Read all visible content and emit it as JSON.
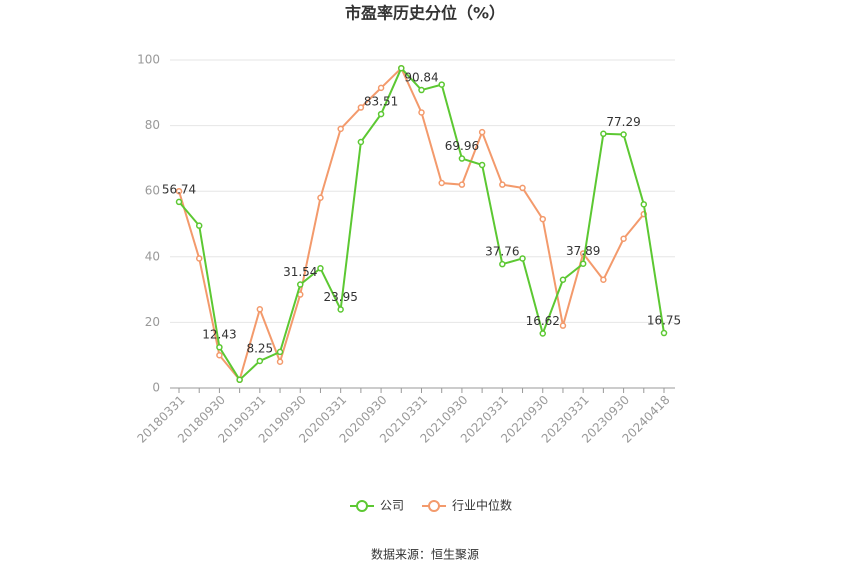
{
  "chart_data": {
    "type": "line",
    "title": "市盈率历史分位（%）",
    "source": "数据来源：恒生聚源",
    "categories": [
      "20180331",
      null,
      "20180930",
      null,
      "20190331",
      null,
      "20190930",
      null,
      "20200331",
      null,
      "20200930",
      null,
      "20210331",
      null,
      "20210930",
      null,
      "20220331",
      null,
      "20220930",
      null,
      "20230331",
      null,
      "20230930",
      null,
      "20240418"
    ],
    "series": [
      {
        "name": "公司",
        "color": "#5cc832",
        "values": [
          56.74,
          49.5,
          12.43,
          2.5,
          8.25,
          11,
          31.54,
          36.5,
          23.95,
          75,
          83.51,
          97.5,
          90.84,
          92.5,
          69.96,
          68,
          37.76,
          39.5,
          16.62,
          33,
          37.89,
          77.5,
          77.29,
          56,
          16.75
        ],
        "value_labels": [
          "56.74",
          null,
          "12.43",
          null,
          "8.25",
          null,
          "31.54",
          null,
          "23.95",
          null,
          "83.51",
          null,
          "90.84",
          null,
          "69.96",
          null,
          "37.76",
          null,
          "16.62",
          null,
          "37.89",
          null,
          "77.29",
          null,
          "16.75"
        ]
      },
      {
        "name": "行业中位数",
        "color": "#f39a6c",
        "values": [
          60,
          39.5,
          10,
          2.5,
          24,
          8,
          28.5,
          58,
          79,
          85.5,
          91.5,
          97.5,
          84,
          62.5,
          62,
          78,
          62,
          61,
          51.5,
          19,
          41,
          33,
          45.5,
          53,
          null
        ]
      }
    ],
    "ylim": [
      0,
      100
    ],
    "yticks": [
      0,
      20,
      40,
      60,
      80,
      100
    ],
    "grid": true
  }
}
